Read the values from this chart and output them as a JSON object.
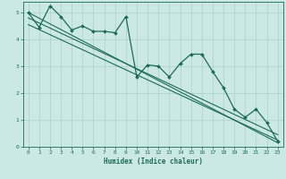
{
  "xlabel": "Humidex (Indice chaleur)",
  "ylabel": "",
  "xlim": [
    -0.5,
    23.5
  ],
  "ylim": [
    0,
    5.4
  ],
  "bg_color": "#cce8e4",
  "grid_color": "#aad0cc",
  "line_color": "#1a6b5a",
  "x_ticks": [
    0,
    1,
    2,
    3,
    4,
    5,
    6,
    7,
    8,
    9,
    10,
    11,
    12,
    13,
    14,
    15,
    16,
    17,
    18,
    19,
    20,
    21,
    22,
    23
  ],
  "y_ticks": [
    0,
    1,
    2,
    3,
    4,
    5
  ],
  "lines": [
    {
      "x": [
        0,
        1,
        2,
        3,
        4,
        5,
        6,
        7,
        8,
        9,
        10,
        11,
        12,
        13,
        14,
        15,
        16,
        17,
        18,
        19,
        20,
        21,
        22,
        23
      ],
      "y": [
        5.0,
        4.45,
        5.25,
        4.85,
        4.35,
        4.5,
        4.3,
        4.3,
        4.25,
        4.85,
        2.6,
        3.05,
        3.0,
        2.6,
        3.1,
        3.45,
        3.45,
        2.8,
        2.2,
        1.4,
        1.1,
        1.4,
        0.9,
        0.2
      ],
      "marker": true,
      "linewidth": 0.9
    },
    {
      "x": [
        0,
        23
      ],
      "y": [
        5.0,
        0.15
      ],
      "marker": false,
      "linewidth": 0.8
    },
    {
      "x": [
        0,
        23
      ],
      "y": [
        4.8,
        0.45
      ],
      "marker": false,
      "linewidth": 0.8
    },
    {
      "x": [
        0,
        23
      ],
      "y": [
        4.55,
        0.25
      ],
      "marker": false,
      "linewidth": 0.8
    }
  ]
}
